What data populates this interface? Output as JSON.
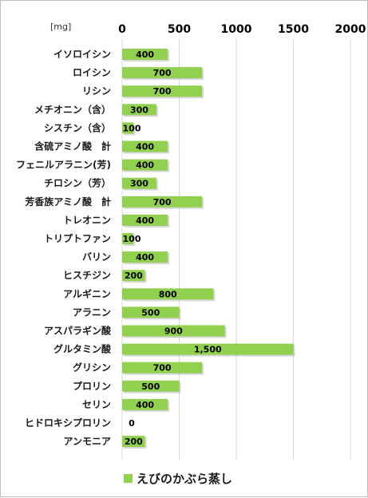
{
  "chart_data": {
    "type": "bar",
    "orientation": "horizontal",
    "unit": "[mg]",
    "xlim": [
      0,
      2000
    ],
    "ticks": [
      "0",
      "500",
      "1000",
      "1500",
      "2000"
    ],
    "tick_values": [
      0,
      500,
      1000,
      1500,
      2000
    ],
    "grid": true,
    "legend_position": "bottom",
    "categories": [
      "イソロイシン",
      "ロイシン",
      "リシン",
      "メチオニン（含）",
      "シスチン（含）",
      "含硫アミノ酸　計",
      "フェニルアラニン(芳)",
      "チロシン（芳）",
      "芳香族アミノ酸　計",
      "トレオニン",
      "トリプトファン",
      "バリン",
      "ヒスチジン",
      "アルギニン",
      "アラニン",
      "アスパラギン酸",
      "グルタミン酸",
      "グリシン",
      "プロリン",
      "セリン",
      "ヒドロキシプロリン",
      "アンモニア"
    ],
    "series": [
      {
        "name": "えびのかぶら蒸し",
        "color": "#92d050",
        "values": [
          400,
          700,
          700,
          300,
          100,
          400,
          400,
          300,
          700,
          400,
          100,
          400,
          200,
          800,
          500,
          900,
          1500,
          700,
          500,
          400,
          0,
          200
        ],
        "value_labels": [
          "400",
          "700",
          "700",
          "300",
          "100",
          "400",
          "400",
          "300",
          "700",
          "400",
          "100",
          "400",
          "200",
          "800",
          "500",
          "900",
          "1,500",
          "700",
          "500",
          "400",
          "0",
          "200"
        ]
      }
    ]
  }
}
